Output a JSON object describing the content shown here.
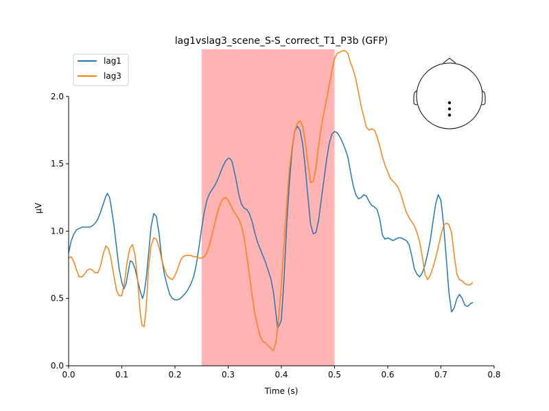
{
  "chart_data": {
    "type": "line",
    "title": "lag1vslag3_scene_S-S_correct_T1_P3b (GFP)",
    "xlabel": "Time (s)",
    "ylabel": "µV",
    "xlim": [
      0.0,
      0.8
    ],
    "ylim": [
      0.0,
      2.35
    ],
    "xticks": [
      0.0,
      0.1,
      0.2,
      0.3,
      0.4,
      0.5,
      0.6,
      0.7,
      0.8
    ],
    "xtick_labels": [
      "0.0",
      "0.1",
      "0.2",
      "0.3",
      "0.4",
      "0.5",
      "0.6",
      "0.7",
      "0.8"
    ],
    "yticks": [
      0.0,
      0.5,
      1.0,
      1.5,
      2.0
    ],
    "ytick_labels": [
      "0.0",
      "0.5",
      "1.0",
      "1.5",
      "2.0"
    ],
    "grid": false,
    "legend_position": "top-left",
    "highlight_span": [
      0.25,
      0.5
    ],
    "highlight_color": "#ffb3b3",
    "sensor_inset": "head outline with three midline sensor dots",
    "series": [
      {
        "name": "lag1",
        "color": "#1f77b4",
        "points": [
          [
            0.0,
            0.84
          ],
          [
            0.005,
            0.93
          ],
          [
            0.01,
            0.98
          ],
          [
            0.015,
            1.01
          ],
          [
            0.02,
            1.02
          ],
          [
            0.025,
            1.03
          ],
          [
            0.03,
            1.03
          ],
          [
            0.035,
            1.03
          ],
          [
            0.04,
            1.03
          ],
          [
            0.045,
            1.04
          ],
          [
            0.05,
            1.06
          ],
          [
            0.055,
            1.09
          ],
          [
            0.06,
            1.14
          ],
          [
            0.065,
            1.2
          ],
          [
            0.07,
            1.26
          ],
          [
            0.073,
            1.28
          ],
          [
            0.077,
            1.25
          ],
          [
            0.08,
            1.18
          ],
          [
            0.085,
            1.05
          ],
          [
            0.09,
            0.88
          ],
          [
            0.095,
            0.72
          ],
          [
            0.1,
            0.62
          ],
          [
            0.104,
            0.57
          ],
          [
            0.108,
            0.61
          ],
          [
            0.112,
            0.7
          ],
          [
            0.116,
            0.78
          ],
          [
            0.12,
            0.77
          ],
          [
            0.125,
            0.72
          ],
          [
            0.13,
            0.63
          ],
          [
            0.135,
            0.55
          ],
          [
            0.139,
            0.5
          ],
          [
            0.142,
            0.54
          ],
          [
            0.146,
            0.65
          ],
          [
            0.15,
            0.82
          ],
          [
            0.155,
            1.03
          ],
          [
            0.16,
            1.13
          ],
          [
            0.165,
            1.11
          ],
          [
            0.17,
            0.98
          ],
          [
            0.175,
            0.8
          ],
          [
            0.18,
            0.68
          ],
          [
            0.185,
            0.6
          ],
          [
            0.19,
            0.53
          ],
          [
            0.195,
            0.5
          ],
          [
            0.2,
            0.49
          ],
          [
            0.205,
            0.49
          ],
          [
            0.21,
            0.5
          ],
          [
            0.215,
            0.52
          ],
          [
            0.22,
            0.54
          ],
          [
            0.225,
            0.57
          ],
          [
            0.23,
            0.61
          ],
          [
            0.235,
            0.66
          ],
          [
            0.24,
            0.75
          ],
          [
            0.245,
            0.88
          ],
          [
            0.25,
            1.02
          ],
          [
            0.255,
            1.14
          ],
          [
            0.26,
            1.23
          ],
          [
            0.265,
            1.28
          ],
          [
            0.27,
            1.31
          ],
          [
            0.275,
            1.34
          ],
          [
            0.28,
            1.38
          ],
          [
            0.285,
            1.43
          ],
          [
            0.29,
            1.48
          ],
          [
            0.295,
            1.52
          ],
          [
            0.3,
            1.54
          ],
          [
            0.303,
            1.54
          ],
          [
            0.307,
            1.52
          ],
          [
            0.31,
            1.47
          ],
          [
            0.315,
            1.38
          ],
          [
            0.32,
            1.27
          ],
          [
            0.325,
            1.2
          ],
          [
            0.33,
            1.17
          ],
          [
            0.335,
            1.16
          ],
          [
            0.34,
            1.13
          ],
          [
            0.345,
            1.07
          ],
          [
            0.35,
            0.99
          ],
          [
            0.355,
            0.92
          ],
          [
            0.36,
            0.87
          ],
          [
            0.365,
            0.82
          ],
          [
            0.37,
            0.77
          ],
          [
            0.375,
            0.71
          ],
          [
            0.38,
            0.65
          ],
          [
            0.385,
            0.55
          ],
          [
            0.39,
            0.38
          ],
          [
            0.393,
            0.28
          ],
          [
            0.397,
            0.31
          ],
          [
            0.4,
            0.34
          ],
          [
            0.405,
            0.65
          ],
          [
            0.41,
            1.05
          ],
          [
            0.415,
            1.35
          ],
          [
            0.42,
            1.6
          ],
          [
            0.425,
            1.74
          ],
          [
            0.43,
            1.78
          ],
          [
            0.435,
            1.75
          ],
          [
            0.44,
            1.65
          ],
          [
            0.445,
            1.47
          ],
          [
            0.45,
            1.25
          ],
          [
            0.455,
            1.05
          ],
          [
            0.46,
            0.98
          ],
          [
            0.465,
            0.99
          ],
          [
            0.47,
            1.08
          ],
          [
            0.475,
            1.23
          ],
          [
            0.48,
            1.38
          ],
          [
            0.485,
            1.53
          ],
          [
            0.49,
            1.65
          ],
          [
            0.495,
            1.72
          ],
          [
            0.5,
            1.74
          ],
          [
            0.505,
            1.73
          ],
          [
            0.51,
            1.7
          ],
          [
            0.515,
            1.66
          ],
          [
            0.52,
            1.61
          ],
          [
            0.525,
            1.55
          ],
          [
            0.53,
            1.44
          ],
          [
            0.535,
            1.34
          ],
          [
            0.54,
            1.27
          ],
          [
            0.545,
            1.24
          ],
          [
            0.55,
            1.25
          ],
          [
            0.555,
            1.27
          ],
          [
            0.56,
            1.26
          ],
          [
            0.565,
            1.22
          ],
          [
            0.57,
            1.19
          ],
          [
            0.575,
            1.18
          ],
          [
            0.58,
            1.16
          ],
          [
            0.585,
            1.09
          ],
          [
            0.59,
            0.97
          ],
          [
            0.595,
            0.94
          ],
          [
            0.6,
            0.95
          ],
          [
            0.605,
            0.94
          ],
          [
            0.61,
            0.93
          ],
          [
            0.615,
            0.94
          ],
          [
            0.62,
            0.95
          ],
          [
            0.625,
            0.95
          ],
          [
            0.63,
            0.94
          ],
          [
            0.635,
            0.93
          ],
          [
            0.64,
            0.9
          ],
          [
            0.645,
            0.82
          ],
          [
            0.65,
            0.72
          ],
          [
            0.655,
            0.68
          ],
          [
            0.66,
            0.66
          ],
          [
            0.665,
            0.69
          ],
          [
            0.67,
            0.75
          ],
          [
            0.675,
            0.83
          ],
          [
            0.68,
            0.93
          ],
          [
            0.685,
            1.07
          ],
          [
            0.69,
            1.2
          ],
          [
            0.695,
            1.27
          ],
          [
            0.7,
            1.23
          ],
          [
            0.705,
            1.05
          ],
          [
            0.71,
            0.8
          ],
          [
            0.715,
            0.55
          ],
          [
            0.72,
            0.4
          ],
          [
            0.725,
            0.43
          ],
          [
            0.73,
            0.5
          ],
          [
            0.735,
            0.53
          ],
          [
            0.74,
            0.5
          ],
          [
            0.745,
            0.45
          ],
          [
            0.75,
            0.44
          ],
          [
            0.755,
            0.46
          ],
          [
            0.76,
            0.47
          ]
        ]
      },
      {
        "name": "lag3",
        "color": "#ff7f0e",
        "points": [
          [
            0.0,
            0.8
          ],
          [
            0.005,
            0.81
          ],
          [
            0.01,
            0.77
          ],
          [
            0.015,
            0.71
          ],
          [
            0.02,
            0.66
          ],
          [
            0.025,
            0.66
          ],
          [
            0.03,
            0.68
          ],
          [
            0.035,
            0.71
          ],
          [
            0.04,
            0.72
          ],
          [
            0.045,
            0.71
          ],
          [
            0.05,
            0.69
          ],
          [
            0.055,
            0.69
          ],
          [
            0.06,
            0.74
          ],
          [
            0.065,
            0.83
          ],
          [
            0.07,
            0.89
          ],
          [
            0.075,
            0.87
          ],
          [
            0.08,
            0.79
          ],
          [
            0.085,
            0.67
          ],
          [
            0.09,
            0.56
          ],
          [
            0.095,
            0.52
          ],
          [
            0.1,
            0.52
          ],
          [
            0.105,
            0.62
          ],
          [
            0.11,
            0.77
          ],
          [
            0.115,
            0.87
          ],
          [
            0.12,
            0.9
          ],
          [
            0.125,
            0.82
          ],
          [
            0.13,
            0.62
          ],
          [
            0.135,
            0.38
          ],
          [
            0.138,
            0.3
          ],
          [
            0.142,
            0.29
          ],
          [
            0.146,
            0.43
          ],
          [
            0.15,
            0.72
          ],
          [
            0.155,
            0.89
          ],
          [
            0.16,
            0.95
          ],
          [
            0.165,
            0.94
          ],
          [
            0.17,
            0.88
          ],
          [
            0.175,
            0.79
          ],
          [
            0.18,
            0.72
          ],
          [
            0.185,
            0.67
          ],
          [
            0.19,
            0.65
          ],
          [
            0.195,
            0.64
          ],
          [
            0.2,
            0.67
          ],
          [
            0.205,
            0.72
          ],
          [
            0.21,
            0.78
          ],
          [
            0.215,
            0.81
          ],
          [
            0.22,
            0.82
          ],
          [
            0.225,
            0.82
          ],
          [
            0.23,
            0.82
          ],
          [
            0.235,
            0.81
          ],
          [
            0.24,
            0.81
          ],
          [
            0.245,
            0.8
          ],
          [
            0.25,
            0.8
          ],
          [
            0.255,
            0.81
          ],
          [
            0.26,
            0.84
          ],
          [
            0.265,
            0.9
          ],
          [
            0.27,
            0.98
          ],
          [
            0.275,
            1.06
          ],
          [
            0.28,
            1.14
          ],
          [
            0.285,
            1.2
          ],
          [
            0.29,
            1.24
          ],
          [
            0.295,
            1.25
          ],
          [
            0.3,
            1.23
          ],
          [
            0.305,
            1.19
          ],
          [
            0.31,
            1.15
          ],
          [
            0.315,
            1.12
          ],
          [
            0.32,
            1.09
          ],
          [
            0.325,
            1.04
          ],
          [
            0.33,
            0.95
          ],
          [
            0.335,
            0.82
          ],
          [
            0.34,
            0.67
          ],
          [
            0.345,
            0.52
          ],
          [
            0.35,
            0.39
          ],
          [
            0.355,
            0.3
          ],
          [
            0.36,
            0.22
          ],
          [
            0.365,
            0.18
          ],
          [
            0.37,
            0.17
          ],
          [
            0.375,
            0.15
          ],
          [
            0.38,
            0.13
          ],
          [
            0.385,
            0.11
          ],
          [
            0.39,
            0.18
          ],
          [
            0.395,
            0.35
          ],
          [
            0.4,
            0.6
          ],
          [
            0.405,
            0.9
          ],
          [
            0.41,
            1.2
          ],
          [
            0.415,
            1.45
          ],
          [
            0.42,
            1.62
          ],
          [
            0.425,
            1.74
          ],
          [
            0.43,
            1.8
          ],
          [
            0.435,
            1.82
          ],
          [
            0.44,
            1.78
          ],
          [
            0.445,
            1.66
          ],
          [
            0.45,
            1.5
          ],
          [
            0.455,
            1.36
          ],
          [
            0.46,
            1.37
          ],
          [
            0.465,
            1.47
          ],
          [
            0.47,
            1.63
          ],
          [
            0.475,
            1.77
          ],
          [
            0.48,
            1.88
          ],
          [
            0.485,
            1.98
          ],
          [
            0.49,
            2.08
          ],
          [
            0.495,
            2.19
          ],
          [
            0.5,
            2.28
          ],
          [
            0.505,
            2.32
          ],
          [
            0.51,
            2.33
          ],
          [
            0.515,
            2.34
          ],
          [
            0.52,
            2.34
          ],
          [
            0.525,
            2.32
          ],
          [
            0.53,
            2.25
          ],
          [
            0.535,
            2.2
          ],
          [
            0.54,
            2.13
          ],
          [
            0.545,
            2.03
          ],
          [
            0.55,
            1.93
          ],
          [
            0.555,
            1.85
          ],
          [
            0.56,
            1.77
          ],
          [
            0.565,
            1.75
          ],
          [
            0.57,
            1.76
          ],
          [
            0.575,
            1.75
          ],
          [
            0.58,
            1.7
          ],
          [
            0.585,
            1.63
          ],
          [
            0.59,
            1.55
          ],
          [
            0.595,
            1.49
          ],
          [
            0.6,
            1.44
          ],
          [
            0.605,
            1.39
          ],
          [
            0.61,
            1.37
          ],
          [
            0.615,
            1.35
          ],
          [
            0.62,
            1.32
          ],
          [
            0.625,
            1.27
          ],
          [
            0.63,
            1.2
          ],
          [
            0.635,
            1.14
          ],
          [
            0.64,
            1.1
          ],
          [
            0.645,
            1.07
          ],
          [
            0.65,
            1.04
          ],
          [
            0.655,
            0.99
          ],
          [
            0.66,
            0.92
          ],
          [
            0.665,
            0.81
          ],
          [
            0.67,
            0.68
          ],
          [
            0.675,
            0.64
          ],
          [
            0.68,
            0.67
          ],
          [
            0.685,
            0.73
          ],
          [
            0.69,
            0.8
          ],
          [
            0.695,
            0.88
          ],
          [
            0.7,
            0.97
          ],
          [
            0.705,
            1.04
          ],
          [
            0.71,
            1.06
          ],
          [
            0.715,
            1.05
          ],
          [
            0.72,
            0.99
          ],
          [
            0.725,
            0.82
          ],
          [
            0.73,
            0.68
          ],
          [
            0.735,
            0.64
          ],
          [
            0.74,
            0.63
          ],
          [
            0.745,
            0.61
          ],
          [
            0.75,
            0.6
          ],
          [
            0.755,
            0.6
          ],
          [
            0.76,
            0.62
          ]
        ]
      }
    ]
  }
}
